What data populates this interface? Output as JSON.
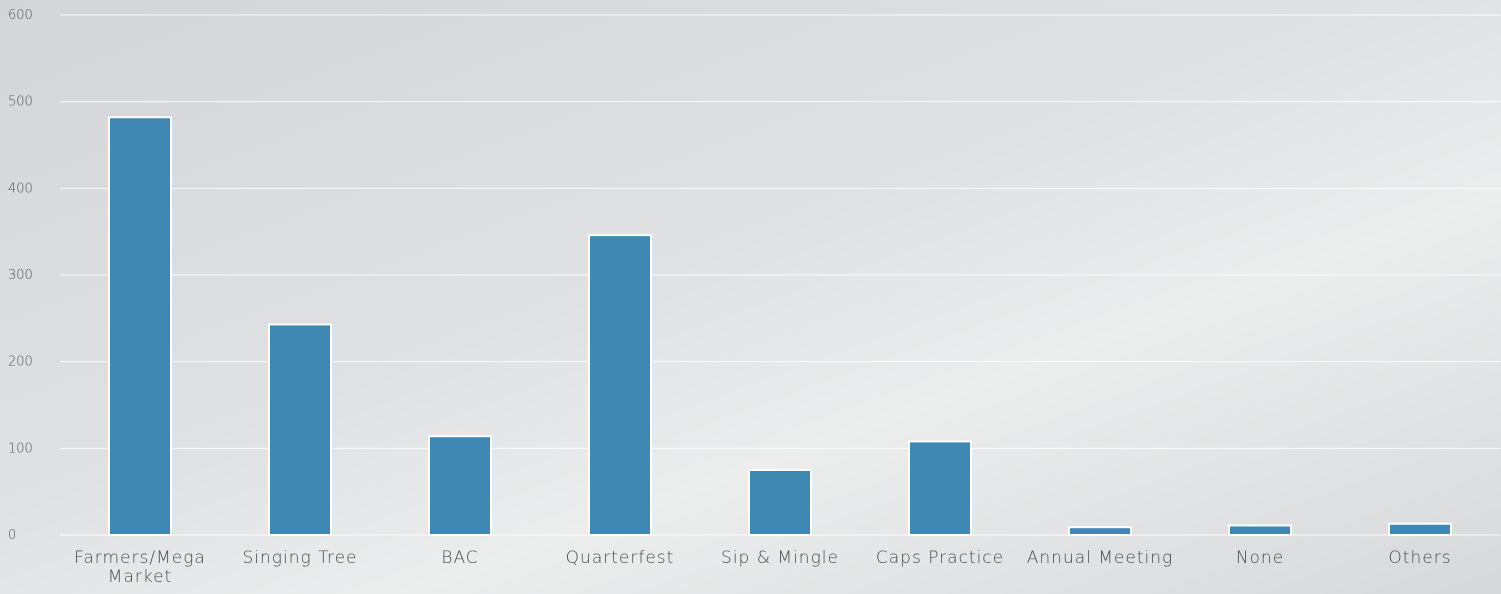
{
  "chart_data": {
    "type": "bar",
    "categories": [
      "Farmers/Mega Market",
      "Singing Tree",
      "BAC",
      "Quarterfest",
      "Sip & Mingle",
      "Caps Practice",
      "Annual Meeting",
      "None",
      "Others"
    ],
    "values": [
      482,
      243,
      114,
      346,
      75,
      108,
      9,
      11,
      13
    ],
    "color": "#3f88b4",
    "ylim": [
      0,
      600
    ],
    "yticks": [
      0,
      100,
      200,
      300,
      400,
      500,
      600
    ],
    "grid": true
  }
}
